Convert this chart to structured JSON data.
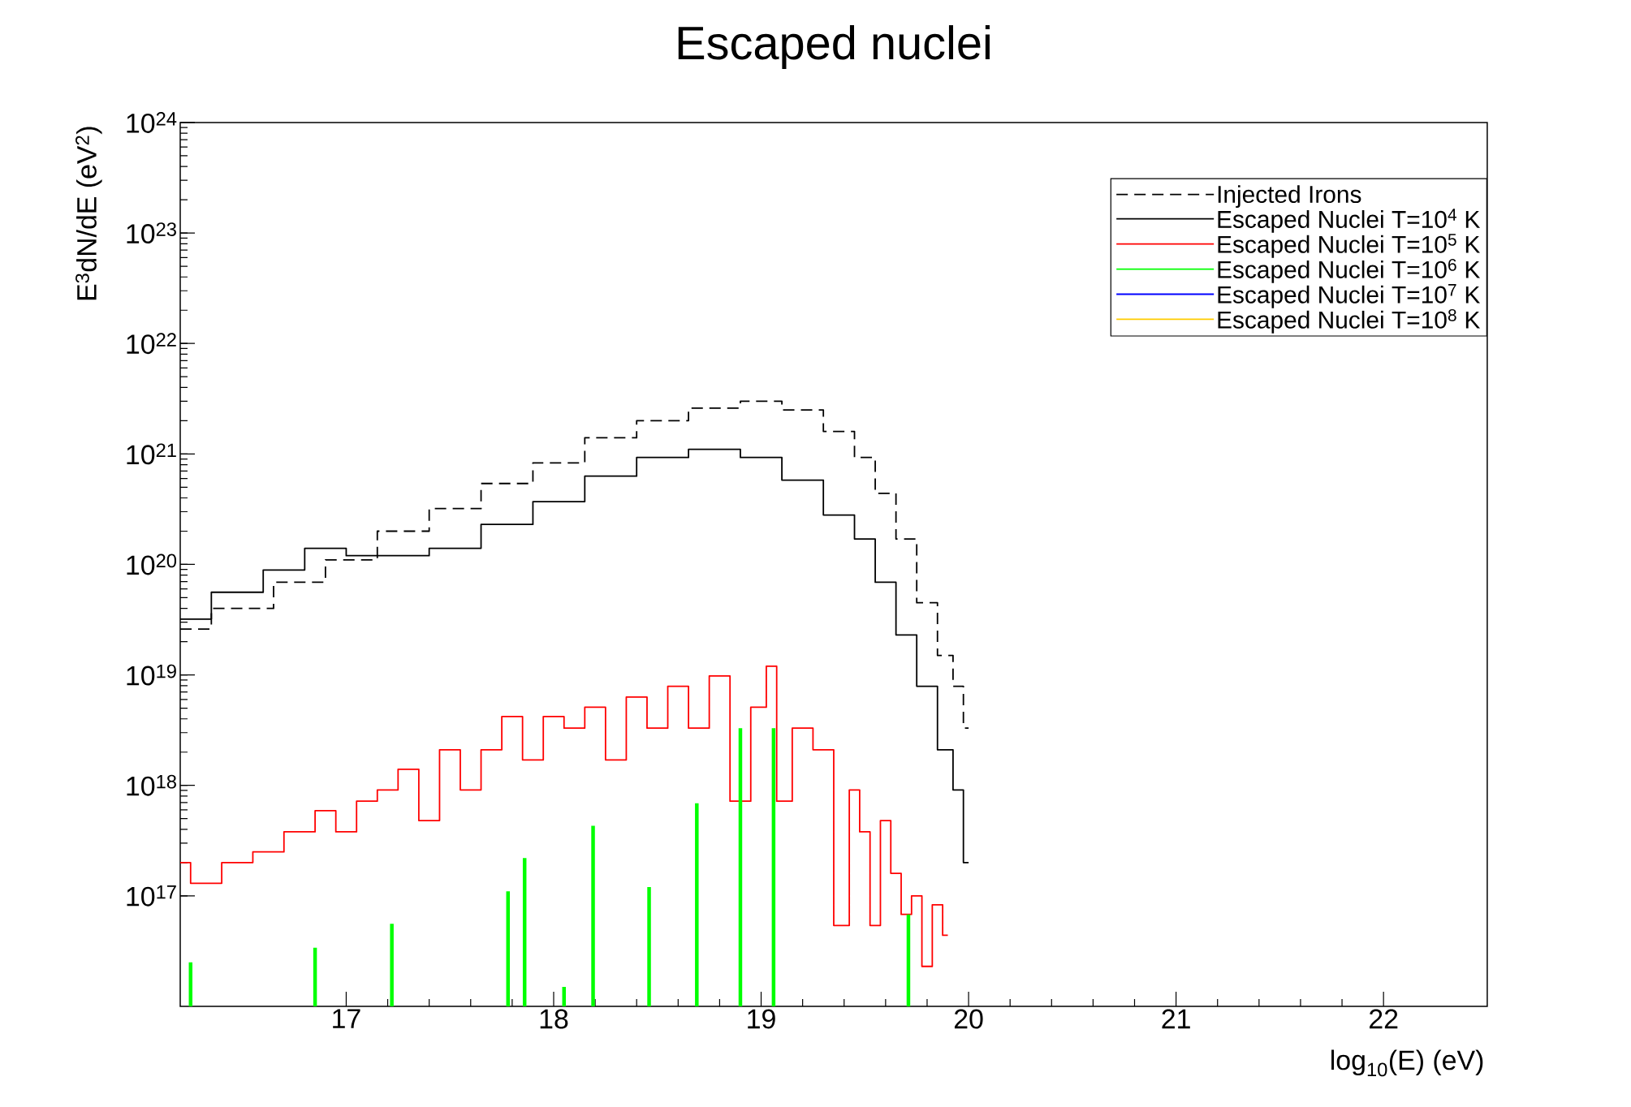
{
  "chart_data": {
    "type": "step",
    "title": "Escaped nuclei",
    "xlabel": "log$_{10}$(E) (eV)",
    "ylabel": "E$^{3}$dN/dE (eV$^{2}$)",
    "log": "y",
    "grid": false,
    "legend": "top right",
    "xlim": [
      16.2,
      22.5
    ],
    "xticks": [
      17,
      18,
      19,
      20,
      21,
      22
    ],
    "ylim": [
      1e+16,
      1e+24
    ],
    "yticks": [
      {
        "value": 1e+17,
        "label": "10$^{17}$"
      },
      {
        "value": 1e+18,
        "label": "10$^{18}$"
      },
      {
        "value": 1e+19,
        "label": "10$^{19}$"
      },
      {
        "value": 1e+20,
        "label": "10$^{20}$"
      },
      {
        "value": 1e+21,
        "label": "10$^{21}$"
      },
      {
        "value": 1e+22,
        "label": "10$^{22}$"
      },
      {
        "value": 1e+23,
        "label": "10$^{23}$"
      },
      {
        "value": 1e+24,
        "label": "10$^{24}$"
      }
    ],
    "series": [
      {
        "name": "Injected Irons",
        "color": "#000000",
        "line_style": "dashed",
        "x": [
          16.2,
          16.5,
          16.8,
          17.0,
          17.3,
          17.5,
          17.8,
          18.0,
          18.3,
          18.5,
          18.8,
          19.0,
          19.2,
          19.4,
          19.5,
          19.6,
          19.7,
          19.8,
          19.9,
          19.95,
          20.0
        ],
        "values": [
          2.6e+19,
          4e+19,
          6.9e+19,
          1.1e+20,
          2e+20,
          3.2e+20,
          5.4e+20,
          8.3e+20,
          1.4e+21,
          2e+21,
          2.6e+21,
          3e+21,
          2.5e+21,
          1.6e+21,
          9.3e+20,
          4.4e+20,
          1.7e+20,
          4.5e+19,
          1.5e+19,
          7.9e+18,
          3.3e+18
        ]
      },
      {
        "name": "Escaped Nuclei T=10$^{4}$ K",
        "color": "#000000",
        "x": [
          16.2,
          16.5,
          16.7,
          16.9,
          17.1,
          17.3,
          17.5,
          17.8,
          18.0,
          18.3,
          18.5,
          18.8,
          19.0,
          19.2,
          19.4,
          19.5,
          19.6,
          19.7,
          19.8,
          19.9,
          19.95,
          20.0
        ],
        "values": [
          3.2e+19,
          5.6e+19,
          8.9e+19,
          1.4e+20,
          1.2e+20,
          1.2e+20,
          1.4e+20,
          2.3e+20,
          3.7e+20,
          6.3e+20,
          9.3e+20,
          1.1e+21,
          9.3e+20,
          5.8e+20,
          2.8e+20,
          1.7e+20,
          6.9e+19,
          2.3e+19,
          7.9e+18,
          2.1e+18,
          9.1e+17,
          2e+17
        ]
      },
      {
        "name": "Escaped Nuclei T=10$^{5}$ K",
        "color": "#ff0000",
        "x": [
          16.2,
          16.3,
          16.5,
          16.6,
          16.8,
          16.9,
          17.0,
          17.1,
          17.2,
          17.3,
          17.4,
          17.5,
          17.6,
          17.7,
          17.8,
          17.9,
          18.0,
          18.1,
          18.2,
          18.3,
          18.4,
          18.5,
          18.6,
          18.7,
          18.8,
          18.9,
          19.0,
          19.05,
          19.1,
          19.2,
          19.3,
          19.4,
          19.45,
          19.5,
          19.55,
          19.6,
          19.65,
          19.7,
          19.75,
          19.8,
          19.85,
          19.9
        ],
        "values": [
          2e+17,
          1.3e+17,
          2e+17,
          2.5e+17,
          3.8e+17,
          5.9e+17,
          3.8e+17,
          7.2e+17,
          9.1e+17,
          1.4e+18,
          4.8e+17,
          2.1e+18,
          9.1e+17,
          2.1e+18,
          4.2e+18,
          1.7e+18,
          4.2e+18,
          3.3e+18,
          5.1e+18,
          1.7e+18,
          6.3e+18,
          3.3e+18,
          7.9e+18,
          3.3e+18,
          9.8e+18,
          7.2e+17,
          5.1e+18,
          1.2e+19,
          7.2e+17,
          3.3e+18,
          2.1e+18,
          5.4e+16,
          9.1e+17,
          3.8e+17,
          5.4e+16,
          4.8e+17,
          1.6e+17,
          6.8e+16,
          1e+17,
          2.3e+16,
          8.3e+16,
          4.4e+16
        ]
      },
      {
        "name": "Escaped Nuclei T=10$^{6}$ K",
        "color": "#00ff00",
        "type": "bar",
        "x": [
          16.25,
          16.85,
          17.22,
          17.78,
          17.86,
          18.05,
          18.19,
          18.46,
          18.69,
          18.9,
          19.06,
          19.71
        ],
        "values": [
          2.5e+16,
          3.4e+16,
          5.6e+16,
          1.1e+17,
          2.2e+17,
          1.5e+16,
          4.3e+17,
          1.2e+17,
          6.9e+17,
          3.3e+18,
          3.3e+18,
          6.8e+16
        ]
      },
      {
        "name": "Escaped Nuclei T=10$^{7}$ K",
        "color": "#0000ff"
      },
      {
        "name": "Escaped Nuclei T=10$^{8}$ K",
        "color": "#ffcc00"
      }
    ]
  }
}
